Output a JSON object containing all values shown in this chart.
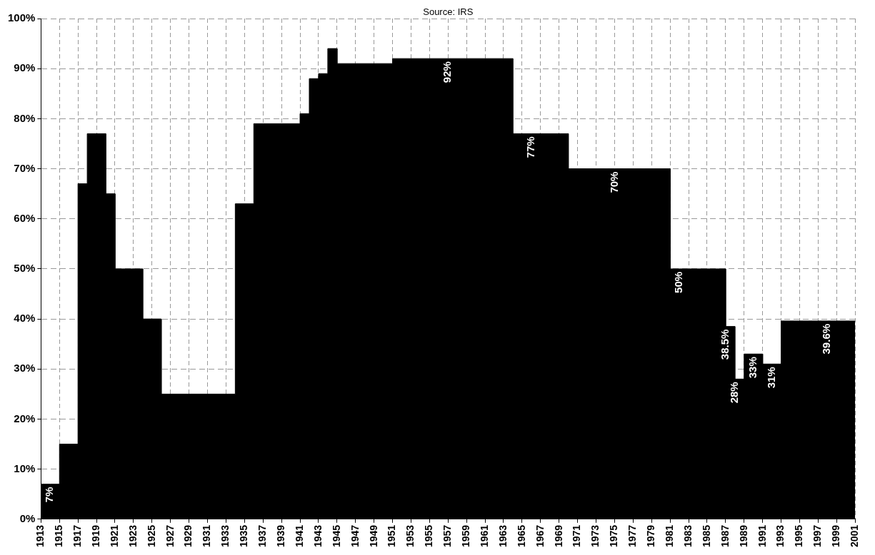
{
  "chart_data": {
    "type": "area",
    "annotations": [
      "Source: IRS"
    ],
    "x": [
      1913,
      1914,
      1915,
      1915,
      1917,
      1917,
      1918,
      1918,
      1920,
      1920,
      1921,
      1921,
      1924,
      1924,
      1926,
      1926,
      1934,
      1934,
      1936,
      1936,
      1941,
      1941,
      1942,
      1942,
      1943,
      1943,
      1944,
      1944,
      1945,
      1945,
      1951,
      1951,
      1957,
      1964,
      1964,
      1966,
      1970,
      1970,
      1975,
      1981,
      1981,
      1982,
      1987,
      1987,
      1988,
      1988,
      1989,
      1989,
      1990,
      1991,
      1991,
      1992,
      1993,
      1993,
      1998,
      2001
    ],
    "series": [
      {
        "color": "#000000",
        "values": [
          7,
          7,
          7,
          15,
          15,
          67,
          67,
          77,
          77,
          65,
          65,
          50,
          50,
          40,
          40,
          25,
          25,
          63,
          63,
          79,
          79,
          81,
          81,
          88,
          88,
          89,
          89,
          94,
          94,
          91,
          91,
          92,
          92,
          92,
          77,
          77,
          77,
          70,
          70,
          70,
          50,
          50,
          50,
          38.5,
          38.5,
          28,
          28,
          33,
          33,
          33,
          31,
          31,
          31,
          39.6,
          39.6,
          39.6
        ],
        "value_labels": [
          null,
          "7%",
          null,
          null,
          null,
          null,
          null,
          null,
          null,
          null,
          null,
          null,
          null,
          null,
          null,
          null,
          null,
          null,
          null,
          null,
          null,
          null,
          null,
          null,
          null,
          null,
          null,
          null,
          null,
          null,
          null,
          null,
          "92%",
          null,
          null,
          "77%",
          null,
          null,
          "70%",
          null,
          null,
          "50%",
          null,
          "38.5%",
          null,
          "28%",
          null,
          null,
          "33%",
          null,
          null,
          "31%",
          null,
          null,
          "39.6%",
          null
        ]
      }
    ],
    "xlim": [
      1913,
      2001
    ],
    "xticks": [
      1913,
      1915,
      1917,
      1919,
      1921,
      1923,
      1925,
      1927,
      1929,
      1931,
      1933,
      1935,
      1937,
      1939,
      1941,
      1943,
      1945,
      1947,
      1949,
      1951,
      1953,
      1955,
      1957,
      1959,
      1961,
      1963,
      1965,
      1967,
      1969,
      1971,
      1973,
      1975,
      1977,
      1979,
      1981,
      1983,
      1985,
      1987,
      1989,
      1991,
      1993,
      1995,
      1997,
      1999,
      2001
    ],
    "ylim": [
      0,
      100
    ],
    "yticks": [
      {
        "value": 0,
        "label": "0%"
      },
      {
        "value": 10,
        "label": "10%"
      },
      {
        "value": 20,
        "label": "20%"
      },
      {
        "value": 30,
        "label": "30%"
      },
      {
        "value": 40,
        "label": "40%"
      },
      {
        "value": 50,
        "label": "50%"
      },
      {
        "value": 60,
        "label": "60%"
      },
      {
        "value": 70,
        "label": "70%"
      },
      {
        "value": 80,
        "label": "80%"
      },
      {
        "value": 90,
        "label": "90%"
      },
      {
        "value": 100,
        "label": "100%"
      }
    ],
    "grid": true
  }
}
